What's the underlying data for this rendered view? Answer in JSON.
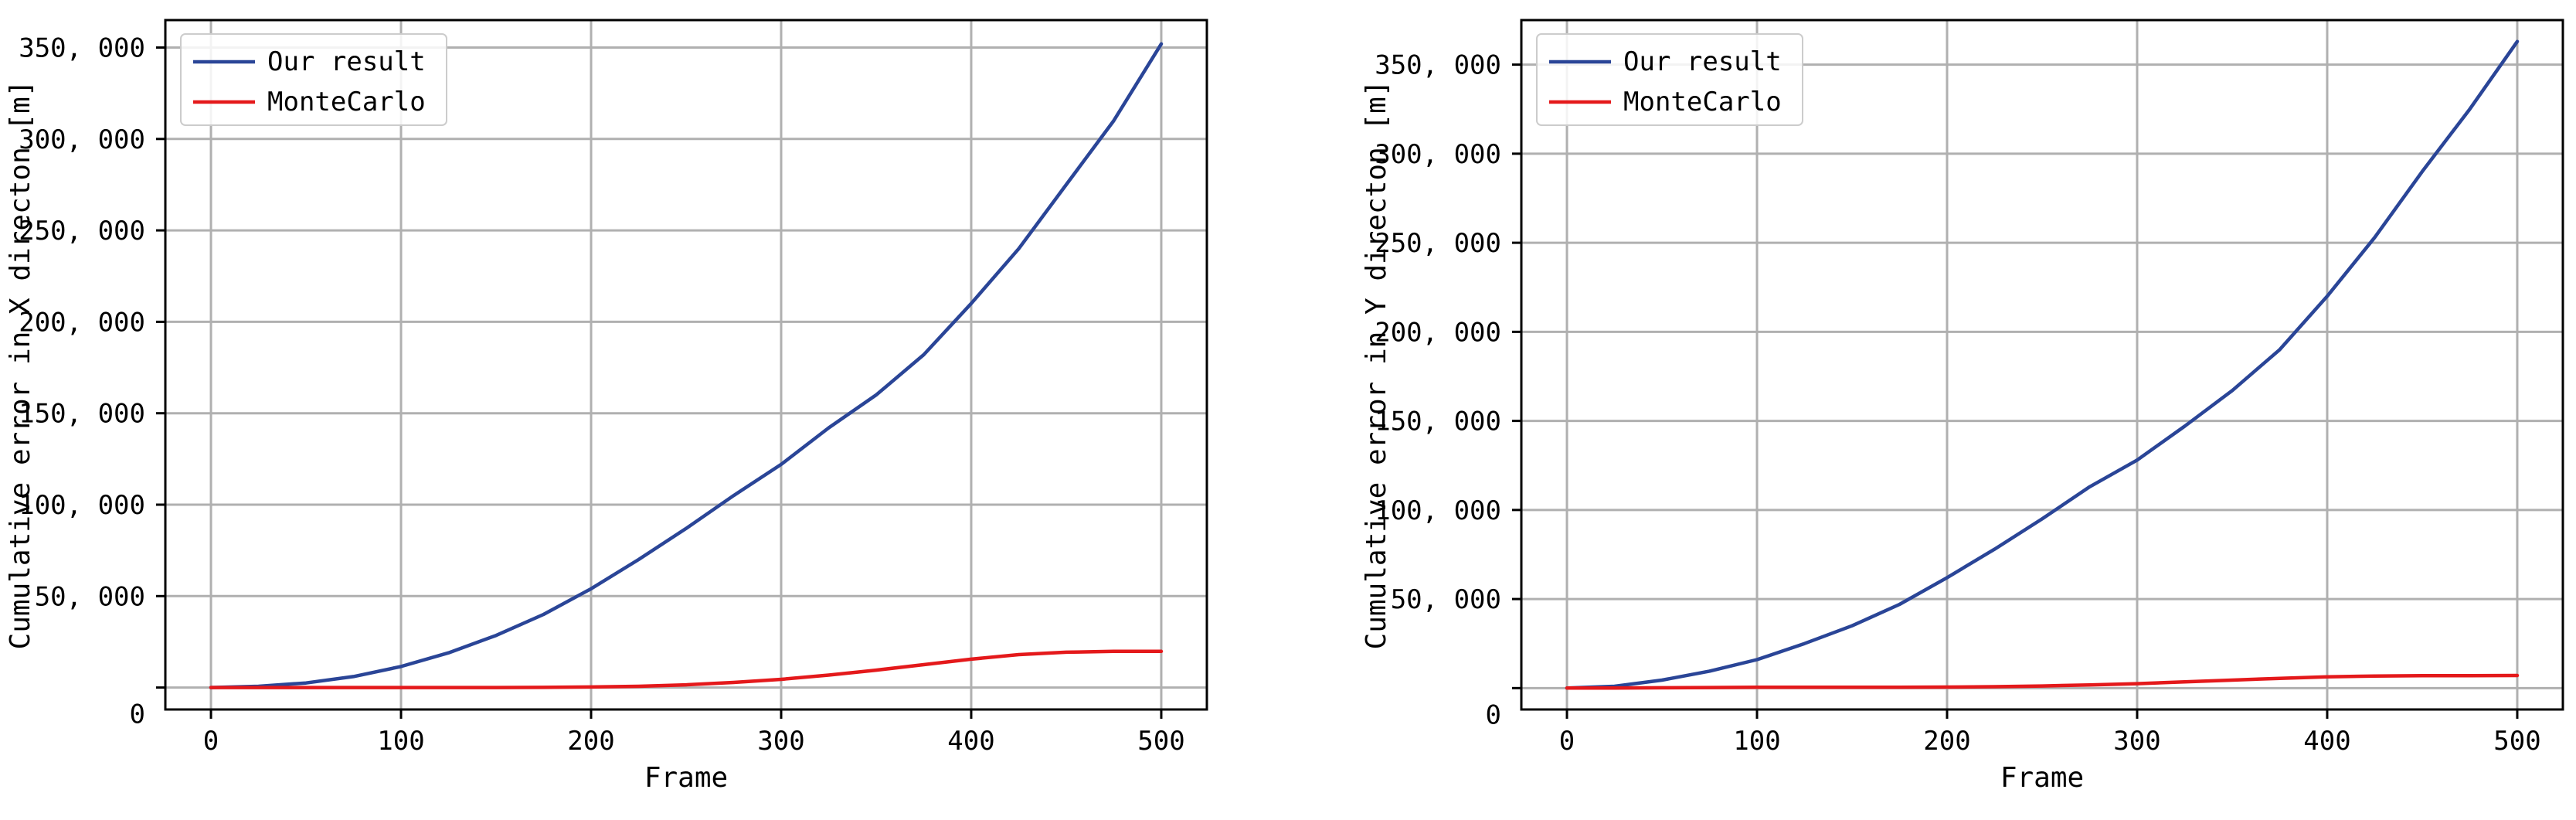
{
  "chart_data": [
    {
      "type": "line",
      "xlabel": "Frame",
      "ylabel": "Cumulative error in X directon [m]",
      "xlim": [
        -24,
        524
      ],
      "ylim": [
        -12000,
        365000
      ],
      "xticks": [
        0,
        100,
        200,
        300,
        400,
        500
      ],
      "xtick_labels": [
        "0",
        "100",
        "200",
        "300",
        "400",
        "500"
      ],
      "yticks": [
        0,
        50000,
        100000,
        150000,
        200000,
        250000,
        300000,
        350000
      ],
      "ytick_labels": [
        "0",
        "50, 000",
        "100, 000",
        "150, 000",
        "200, 000",
        "250, 000",
        "300, 000",
        "350, 000"
      ],
      "grid": true,
      "legend": "top-left",
      "x": [
        0,
        25,
        50,
        75,
        100,
        125,
        150,
        175,
        200,
        225,
        250,
        275,
        300,
        325,
        350,
        375,
        400,
        425,
        450,
        475,
        500
      ],
      "series": [
        {
          "name": "Our result",
          "color": "#2a4597",
          "values": [
            0,
            700,
            2500,
            6000,
            11500,
            19000,
            28500,
            40000,
            54000,
            70000,
            87000,
            105000,
            122000,
            142000,
            160000,
            182000,
            210000,
            240000,
            275000,
            310000,
            352000
          ]
        },
        {
          "name": "MonteCarlo",
          "color": "#e4191b",
          "values": [
            0,
            0,
            0,
            0,
            0,
            0,
            0,
            100,
            300,
            700,
            1500,
            2800,
            4500,
            6800,
            9500,
            12500,
            15500,
            18000,
            19300,
            19800,
            19800
          ]
        }
      ]
    },
    {
      "type": "line",
      "xlabel": "Frame",
      "ylabel": "Cumulative error in Y directon [m]",
      "xlim": [
        -24,
        524
      ],
      "ylim": [
        -12000,
        375000
      ],
      "xticks": [
        0,
        100,
        200,
        300,
        400,
        500
      ],
      "xtick_labels": [
        "0",
        "100",
        "200",
        "300",
        "400",
        "500"
      ],
      "yticks": [
        0,
        50000,
        100000,
        150000,
        200000,
        250000,
        300000,
        350000
      ],
      "ytick_labels": [
        "0",
        "50, 000",
        "100, 000",
        "150, 000",
        "200, 000",
        "250, 000",
        "300, 000",
        "350, 000"
      ],
      "grid": true,
      "legend": "top-left",
      "x": [
        0,
        25,
        50,
        75,
        100,
        125,
        150,
        175,
        200,
        225,
        250,
        275,
        300,
        325,
        350,
        375,
        400,
        425,
        450,
        475,
        500
      ],
      "series": [
        {
          "name": "Our result",
          "color": "#2a4597",
          "values": [
            0,
            1000,
            4500,
            9500,
            16000,
            25000,
            35000,
            47000,
            62000,
            78000,
            95000,
            113000,
            128000,
            147000,
            167000,
            190000,
            220000,
            253000,
            290000,
            325000,
            363000
          ]
        },
        {
          "name": "MonteCarlo",
          "color": "#e4191b",
          "values": [
            0,
            0,
            200,
            300,
            500,
            500,
            500,
            500,
            600,
            800,
            1200,
            1800,
            2500,
            3500,
            4500,
            5500,
            6300,
            6800,
            7000,
            7000,
            7100
          ]
        }
      ]
    }
  ]
}
